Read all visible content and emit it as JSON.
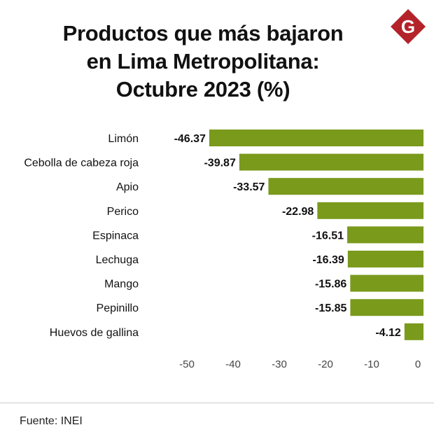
{
  "title": {
    "line1": "Productos que más bajaron",
    "line2": "en Lima Metropolitana:",
    "line3": "Octubre 2023 (%)"
  },
  "logo": {
    "letter": "G",
    "color": "#b4232a"
  },
  "chart_data": {
    "type": "bar",
    "orientation": "horizontal",
    "title": "Productos que más bajaron en Lima Metropolitana: Octubre 2023 (%)",
    "categories": [
      "Limón",
      "Cebolla de cabeza roja",
      "Apio",
      "Perico",
      "Espinaca",
      "Lechuga",
      "Mango",
      "Pepinillo",
      "Huevos de gallina"
    ],
    "values": [
      -46.37,
      -39.87,
      -33.57,
      -22.98,
      -16.51,
      -16.39,
      -15.86,
      -15.85,
      -4.12
    ],
    "value_labels": [
      "-46.37",
      "-39.87",
      "-33.57",
      "-22.98",
      "-16.51",
      "-16.39",
      "-15.86",
      "-15.85",
      "-4.12"
    ],
    "xlim": [
      -50,
      0
    ],
    "xticks": [
      -50,
      -40,
      -30,
      -20,
      -10,
      0
    ],
    "xtick_labels": [
      "-50",
      "-40",
      "-30",
      "-20",
      "-10",
      "0"
    ],
    "bar_color": "#7a9a1c",
    "grid": false
  },
  "footer": {
    "source": "Fuente: INEI"
  }
}
